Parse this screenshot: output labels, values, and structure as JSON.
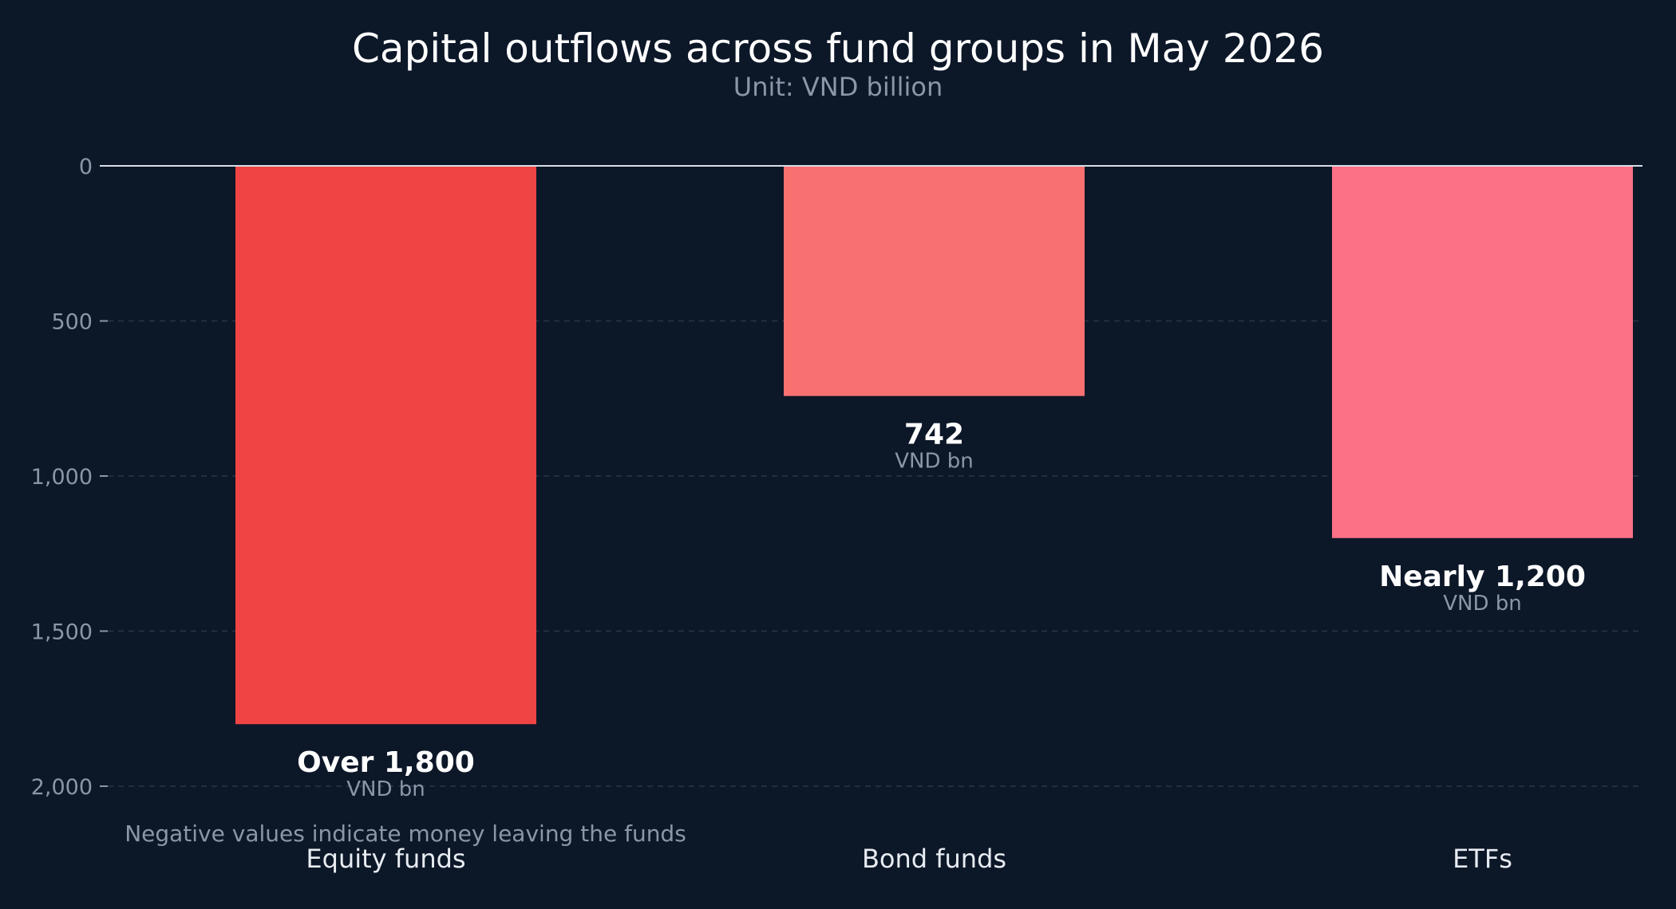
{
  "chart_data": {
    "type": "bar",
    "title": "Capital outflows across fund groups in May 2026",
    "subtitle": "Unit: VND billion",
    "categories": [
      "Equity funds",
      "Bond funds",
      "ETFs"
    ],
    "values": [
      -1800,
      -742,
      -1200
    ],
    "data_labels": [
      "Over 1,800",
      "742",
      "Nearly 1,200"
    ],
    "data_label_unit": "VND bn",
    "y_ticks": [
      0,
      500,
      1000,
      1500,
      2000
    ],
    "y_tick_labels": [
      "0",
      "500",
      "1,000",
      "1,500",
      "2,000"
    ],
    "ylim": [
      0,
      2000
    ],
    "y_inverted": true,
    "grid": true,
    "note": "Negative values indicate money leaving the funds",
    "colors": {
      "background": "#0c1728",
      "bars": [
        "#ef4444",
        "#f87171",
        "#fb7185"
      ],
      "title": "#ffffff",
      "subtitle": "#8b96a8",
      "label_value": "#ffffff",
      "label_unit": "#8b96a8",
      "tick": "#8b96a8",
      "category": "#e8ecf2",
      "note": "#8b96a8",
      "grid": "#2a3647",
      "baseline": "#d9dee6"
    }
  }
}
